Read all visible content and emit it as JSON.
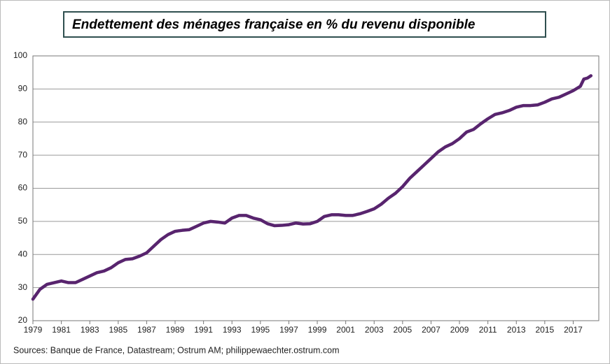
{
  "chart_data": {
    "type": "line",
    "title": "Endettement des ménages française en % du revenu disponible",
    "source": "Sources: Banque de France, Datastream; Ostrum AM; philippewaechter.ostrum.com",
    "x": [
      1979,
      1979.5,
      1980,
      1980.5,
      1981,
      1981.5,
      1982,
      1982.5,
      1983,
      1983.5,
      1984,
      1984.5,
      1985,
      1985.5,
      1986,
      1986.5,
      1987,
      1987.5,
      1988,
      1988.5,
      1989,
      1989.5,
      1990,
      1990.5,
      1991,
      1991.5,
      1992,
      1992.5,
      1993,
      1993.5,
      1994,
      1994.5,
      1995,
      1995.5,
      1996,
      1996.5,
      1997,
      1997.5,
      1998,
      1998.5,
      1999,
      1999.5,
      2000,
      2000.5,
      2001,
      2001.5,
      2002,
      2002.5,
      2003,
      2003.5,
      2004,
      2004.5,
      2005,
      2005.5,
      2006,
      2006.5,
      2007,
      2007.5,
      2008,
      2008.5,
      2009,
      2009.5,
      2010,
      2010.5,
      2011,
      2011.5,
      2012,
      2012.5,
      2013,
      2013.5,
      2014,
      2014.5,
      2015,
      2015.5,
      2016,
      2016.5,
      2017,
      2017.5,
      2017.75,
      2018,
      2018.25
    ],
    "series": [
      {
        "name": "Endettement des ménages",
        "color": "#58246e",
        "values": [
          26.5,
          29.5,
          31,
          31.5,
          32,
          31.5,
          31.5,
          32.5,
          33.5,
          34.5,
          35,
          36,
          37.5,
          38.5,
          38.7,
          39.5,
          40.5,
          42.5,
          44.5,
          46,
          47,
          47.3,
          47.5,
          48.5,
          49.5,
          50,
          49.8,
          49.5,
          51,
          51.8,
          51.8,
          51,
          50.5,
          49.3,
          48.7,
          48.8,
          49,
          49.5,
          49.2,
          49.3,
          50,
          51.5,
          52,
          52,
          51.8,
          51.8,
          52.3,
          53,
          53.8,
          55.2,
          57,
          58.5,
          60.5,
          63,
          65,
          67,
          69,
          71,
          72.5,
          73.5,
          75,
          77,
          77.8,
          79.5,
          81,
          82.3,
          82.8,
          83.5,
          84.5,
          85,
          85,
          85.2,
          86,
          87,
          87.5,
          88.5,
          89.5,
          90.8,
          93,
          93.3,
          94
        ]
      }
    ],
    "xlim": [
      1979,
      2018.8
    ],
    "xticks": [
      1979,
      1981,
      1983,
      1985,
      1987,
      1989,
      1991,
      1993,
      1995,
      1997,
      1999,
      2001,
      2003,
      2005,
      2007,
      2009,
      2011,
      2013,
      2015,
      2017
    ],
    "ylim": [
      20,
      100
    ],
    "yticks": [
      20,
      30,
      40,
      50,
      60,
      70,
      80,
      90,
      100
    ],
    "grid": true
  }
}
